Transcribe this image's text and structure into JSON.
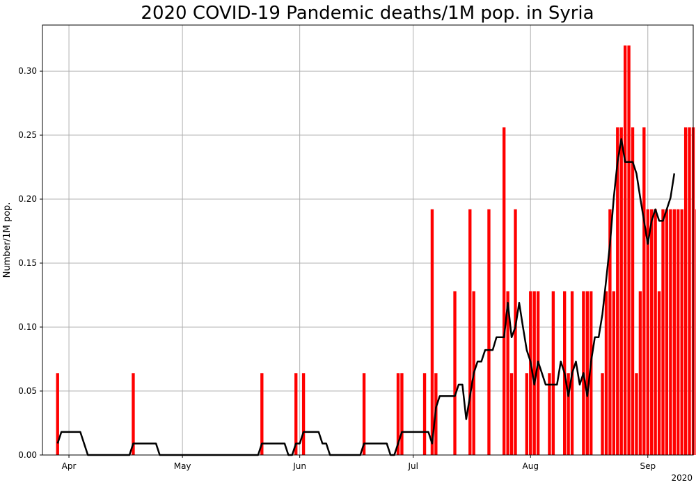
{
  "chart_data": {
    "type": "bar",
    "title": "2020 COVID-19 Pandemic deaths/1M pop. in Syria",
    "xlabel": "",
    "ylabel": "Number/1M pop.",
    "year_label": "2020",
    "x_tick_labels": [
      "Apr",
      "May",
      "Jun",
      "Jul",
      "Aug",
      "Sep"
    ],
    "x_tick_dates": [
      "2020-04-01",
      "2020-05-01",
      "2020-06-01",
      "2020-07-01",
      "2020-08-01",
      "2020-09-01"
    ],
    "y_tick_labels": [
      "0.00",
      "0.05",
      "0.10",
      "0.15",
      "0.20",
      "0.25",
      "0.30"
    ],
    "y_tick_values": [
      0,
      0.05,
      0.1,
      0.15,
      0.2,
      0.25,
      0.3
    ],
    "ylim": [
      0,
      0.336
    ],
    "xlim": [
      "2020-03-25",
      "2020-09-13"
    ],
    "grid": true,
    "bar_color": "#ff0000",
    "line_color": "#000000",
    "start_date": "2020-03-29",
    "series": [
      {
        "name": "",
        "type": "bar",
        "values": [
          0.064,
          0,
          0,
          0,
          0,
          0,
          0,
          0,
          0,
          0,
          0,
          0,
          0,
          0,
          0,
          0,
          0,
          0,
          0,
          0,
          0.064,
          0,
          0,
          0,
          0,
          0,
          0,
          0,
          0,
          0,
          0,
          0,
          0,
          0,
          0,
          0,
          0,
          0,
          0,
          0,
          0,
          0,
          0,
          0,
          0,
          0,
          0,
          0,
          0,
          0,
          0,
          0,
          0,
          0,
          0.064,
          0,
          0,
          0,
          0,
          0,
          0,
          0,
          0,
          0.064,
          0,
          0.064,
          0,
          0,
          0,
          0,
          0,
          0,
          0,
          0,
          0,
          0,
          0,
          0,
          0,
          0,
          0,
          0.064,
          0,
          0,
          0,
          0,
          0,
          0,
          0,
          0,
          0.064,
          0.064,
          0,
          0,
          0,
          0,
          0,
          0.064,
          0,
          0.192,
          0.064,
          0,
          0,
          0,
          0,
          0.128,
          0,
          0,
          0,
          0.192,
          0.128,
          0,
          0,
          0,
          0.192,
          0,
          0,
          0,
          0.256,
          0.128,
          0.064,
          0.192,
          0,
          0,
          0.064,
          0.128,
          0.128,
          0.128,
          0,
          0,
          0.064,
          0.128,
          0,
          0,
          0.128,
          0.064,
          0.128,
          0,
          0,
          0.128,
          0.128,
          0.128,
          0,
          0,
          0.064,
          0.128,
          0.192,
          0.128,
          0.256,
          0.256,
          0.32,
          0.32,
          0.256,
          0.064,
          0.128,
          0.256,
          0.192,
          0.192,
          0.192,
          0.128,
          0.192,
          0.192,
          0.192,
          0.192,
          0.192,
          0.192,
          0.256,
          0.256,
          0.256,
          0.192
        ]
      },
      {
        "name": "",
        "type": "line",
        "values": [
          0.009,
          0.018,
          0.018,
          0.018,
          0.018,
          0.018,
          0.018,
          0.009,
          0,
          0,
          0,
          0,
          0,
          0,
          0,
          0,
          0,
          0,
          0,
          0,
          0.009,
          0.009,
          0.009,
          0.009,
          0.009,
          0.009,
          0.009,
          0,
          0,
          0,
          0,
          0,
          0,
          0,
          0,
          0,
          0,
          0,
          0,
          0,
          0,
          0,
          0,
          0,
          0,
          0,
          0,
          0,
          0,
          0,
          0,
          0,
          0,
          0,
          0.009,
          0.009,
          0.009,
          0.009,
          0.009,
          0.009,
          0.009,
          0,
          0,
          0.009,
          0.009,
          0.018,
          0.018,
          0.018,
          0.018,
          0.018,
          0.009,
          0.009,
          0,
          0,
          0,
          0,
          0,
          0,
          0,
          0,
          0,
          0.009,
          0.009,
          0.009,
          0.009,
          0.009,
          0.009,
          0.009,
          0,
          0,
          0.009,
          0.018,
          0.018,
          0.018,
          0.018,
          0.018,
          0.018,
          0.018,
          0.018,
          0.009,
          0.037,
          0.046,
          0.046,
          0.046,
          0.046,
          0.046,
          0.055,
          0.055,
          0.028,
          0.046,
          0.064,
          0.073,
          0.073,
          0.082,
          0.082,
          0.082,
          0.092,
          0.092,
          0.092,
          0.119,
          0.092,
          0.1,
          0.119,
          0.1,
          0.082,
          0.073,
          0.055,
          0.073,
          0.064,
          0.055,
          0.055,
          0.055,
          0.055,
          0.073,
          0.064,
          0.046,
          0.064,
          0.073,
          0.055,
          0.064,
          0.046,
          0.073,
          0.092,
          0.092,
          0.11,
          0.137,
          0.165,
          0.201,
          0.229,
          0.247,
          0.229,
          0.229,
          0.229,
          0.22,
          0.201,
          0.183,
          0.165,
          0.183,
          0.192,
          0.183,
          0.183,
          0.192,
          0.201,
          0.22
        ]
      }
    ]
  }
}
